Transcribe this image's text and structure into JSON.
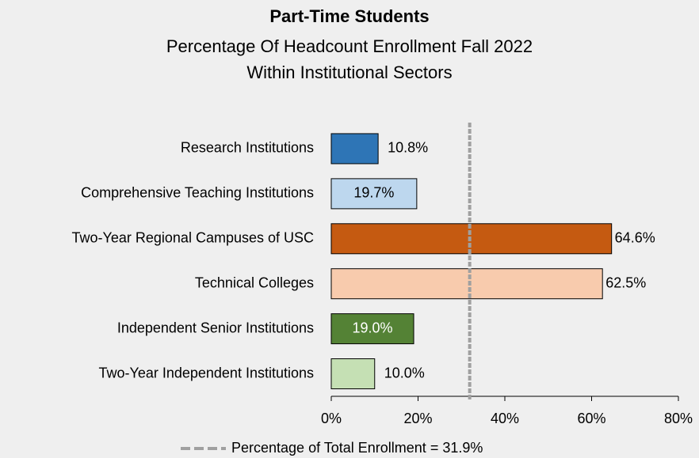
{
  "chart_data": {
    "type": "bar",
    "orientation": "horizontal",
    "title": "Part-Time Students",
    "subtitle": [
      "Percentage Of Headcount Enrollment Fall 2022",
      "Within Institutional Sectors"
    ],
    "categories": [
      "Research Institutions",
      "Comprehensive Teaching Institutions",
      "Two-Year Regional Campuses of USC",
      "Technical Colleges",
      "Independent Senior Institutions",
      "Two-Year Independent Institutions"
    ],
    "values": [
      10.8,
      19.7,
      64.6,
      62.5,
      19.0,
      10.0
    ],
    "value_labels": [
      "10.8%",
      "19.7%",
      "64.6%",
      "62.5%",
      "19.0%",
      "10.0%"
    ],
    "colors": [
      "#2e75b6",
      "#bdd7ee",
      "#c55a11",
      "#f8cbad",
      "#548235",
      "#c5e0b4"
    ],
    "label_colors": [
      "#000000",
      "#000000",
      "#000000",
      "#000000",
      "#ffffff",
      "#000000"
    ],
    "xlim": [
      0,
      80
    ],
    "xticks": [
      {
        "value": 0,
        "label": "0%"
      },
      {
        "value": 20,
        "label": "20%"
      },
      {
        "value": 40,
        "label": "40%"
      },
      {
        "value": 60,
        "label": "60%"
      },
      {
        "value": 80,
        "label": "80%"
      }
    ],
    "reference_line": {
      "value": 31.9,
      "label": "Percentage of Total Enrollment = 31.9%",
      "color": "#a0a0a0"
    }
  }
}
